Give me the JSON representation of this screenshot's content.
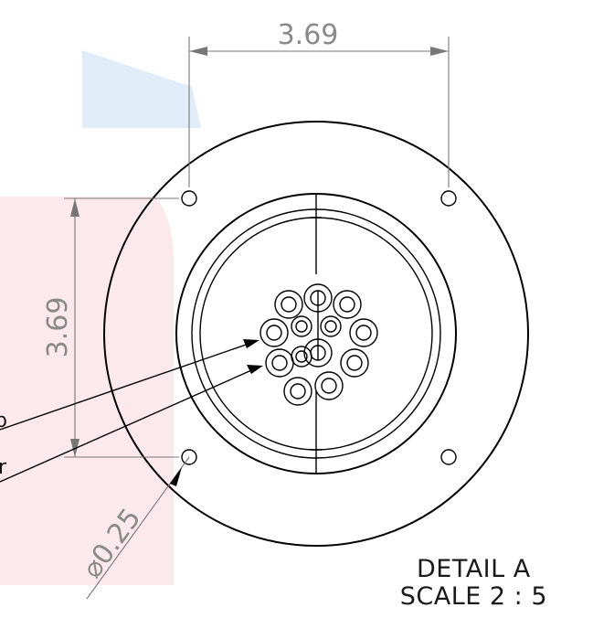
{
  "drawing": {
    "dim_horizontal": "3.69",
    "dim_vertical": "3.69",
    "dim_hole_diameter": "⌀0.25",
    "leader_label_1": "b",
    "leader_label_2": "r"
  },
  "caption": {
    "line1": "DETAIL A",
    "line2": "SCALE 2 : 5"
  },
  "colors": {
    "watermark_blue": "#dbe9f7",
    "watermark_red": "#fbe3e6",
    "line": "#000000",
    "dimension": "#808080"
  }
}
